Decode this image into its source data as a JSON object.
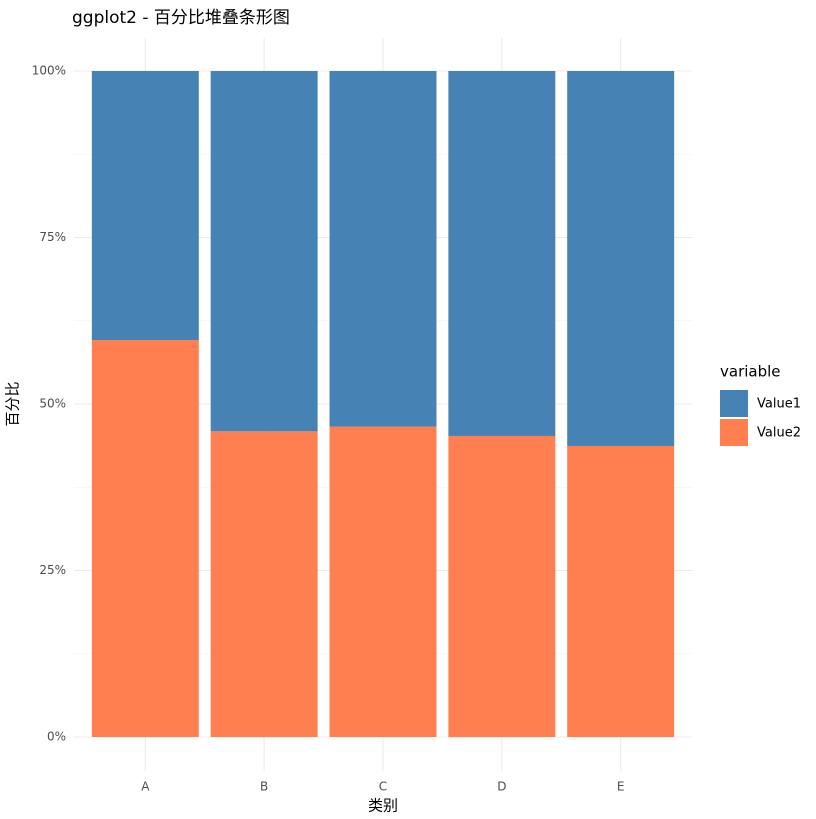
{
  "chart_data": {
    "type": "stacked_bar",
    "title": "ggplot2 - 百分比堆叠条形图",
    "x_label": "类别",
    "y_label": "百分比",
    "categories": [
      "A",
      "B",
      "C",
      "D",
      "E"
    ],
    "series": [
      {
        "name": "Value1",
        "color": "#4682b4",
        "values": [
          40.4,
          54.1,
          53.4,
          54.8,
          56.3
        ]
      },
      {
        "name": "Value2",
        "color": "#ff7f50",
        "values": [
          59.6,
          45.9,
          46.6,
          45.2,
          43.7
        ]
      }
    ],
    "ylim": [
      0,
      100
    ],
    "yticks": [
      {
        "value": 0,
        "label": "0%"
      },
      {
        "value": 25,
        "label": "25%"
      },
      {
        "value": 50,
        "label": "50%"
      },
      {
        "value": 75,
        "label": "75%"
      },
      {
        "value": 100,
        "label": "100%"
      }
    ],
    "legend_title": "variable",
    "legend_position": "right",
    "grid": true
  }
}
